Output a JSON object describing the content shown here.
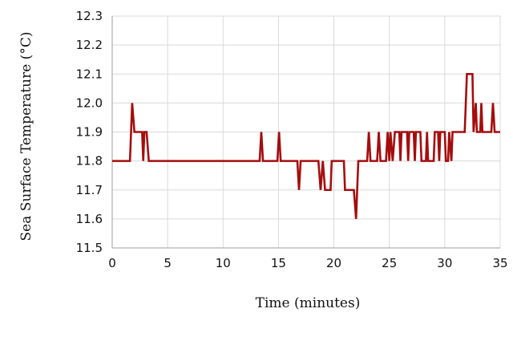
{
  "chart_data": {
    "type": "line",
    "title": "",
    "xlabel": "Time (minutes)",
    "ylabel": "Sea Surface Temperature (°C)",
    "xlim": [
      0,
      35
    ],
    "ylim": [
      11.5,
      12.3
    ],
    "x_ticks": [
      "0",
      "5",
      "10",
      "15",
      "20",
      "25",
      "30",
      "35"
    ],
    "y_ticks": [
      "11.5",
      "11.6",
      "11.7",
      "11.8",
      "11.9",
      "12.0",
      "12.1",
      "12.2",
      "12.3"
    ],
    "grid": true,
    "legend": "none",
    "series": [
      {
        "color": "#a50d0d",
        "points": [
          [
            0,
            11.8
          ],
          [
            1.6,
            11.8
          ],
          [
            1.8,
            12.0
          ],
          [
            2.0,
            11.9
          ],
          [
            2.7,
            11.9
          ],
          [
            2.8,
            11.8
          ],
          [
            2.9,
            11.9
          ],
          [
            3.1,
            11.9
          ],
          [
            3.3,
            11.8
          ],
          [
            13.3,
            11.8
          ],
          [
            13.45,
            11.9
          ],
          [
            13.6,
            11.8
          ],
          [
            14.9,
            11.8
          ],
          [
            15.05,
            11.9
          ],
          [
            15.2,
            11.8
          ],
          [
            16.7,
            11.8
          ],
          [
            16.85,
            11.7
          ],
          [
            17.0,
            11.8
          ],
          [
            18.6,
            11.8
          ],
          [
            18.8,
            11.7
          ],
          [
            19.0,
            11.8
          ],
          [
            19.2,
            11.7
          ],
          [
            19.7,
            11.7
          ],
          [
            19.8,
            11.8
          ],
          [
            20.9,
            11.8
          ],
          [
            21.0,
            11.7
          ],
          [
            21.8,
            11.7
          ],
          [
            22.0,
            11.6
          ],
          [
            22.2,
            11.8
          ],
          [
            23.0,
            11.8
          ],
          [
            23.15,
            11.9
          ],
          [
            23.3,
            11.8
          ],
          [
            23.9,
            11.8
          ],
          [
            24.05,
            11.9
          ],
          [
            24.2,
            11.8
          ],
          [
            24.7,
            11.8
          ],
          [
            24.85,
            11.9
          ],
          [
            25.0,
            11.8
          ],
          [
            25.1,
            11.9
          ],
          [
            25.3,
            11.8
          ],
          [
            25.5,
            11.9
          ],
          [
            25.9,
            11.9
          ],
          [
            26.0,
            11.8
          ],
          [
            26.1,
            11.9
          ],
          [
            26.6,
            11.9
          ],
          [
            26.7,
            11.8
          ],
          [
            26.8,
            11.9
          ],
          [
            27.2,
            11.9
          ],
          [
            27.3,
            11.8
          ],
          [
            27.4,
            11.9
          ],
          [
            27.8,
            11.9
          ],
          [
            27.9,
            11.8
          ],
          [
            28.3,
            11.8
          ],
          [
            28.4,
            11.9
          ],
          [
            28.5,
            11.8
          ],
          [
            29.0,
            11.8
          ],
          [
            29.1,
            11.9
          ],
          [
            29.4,
            11.9
          ],
          [
            29.5,
            11.8
          ],
          [
            29.6,
            11.9
          ],
          [
            30.0,
            11.9
          ],
          [
            30.1,
            11.8
          ],
          [
            30.3,
            11.8
          ],
          [
            30.4,
            11.9
          ],
          [
            30.6,
            11.8
          ],
          [
            30.7,
            11.9
          ],
          [
            31.8,
            11.9
          ],
          [
            32.0,
            12.1
          ],
          [
            32.5,
            12.1
          ],
          [
            32.6,
            11.9
          ],
          [
            32.8,
            12.0
          ],
          [
            32.9,
            11.9
          ],
          [
            33.2,
            11.9
          ],
          [
            33.3,
            12.0
          ],
          [
            33.4,
            11.9
          ],
          [
            34.2,
            11.9
          ],
          [
            34.35,
            12.0
          ],
          [
            34.5,
            11.9
          ],
          [
            35.0,
            11.9
          ]
        ]
      }
    ]
  }
}
